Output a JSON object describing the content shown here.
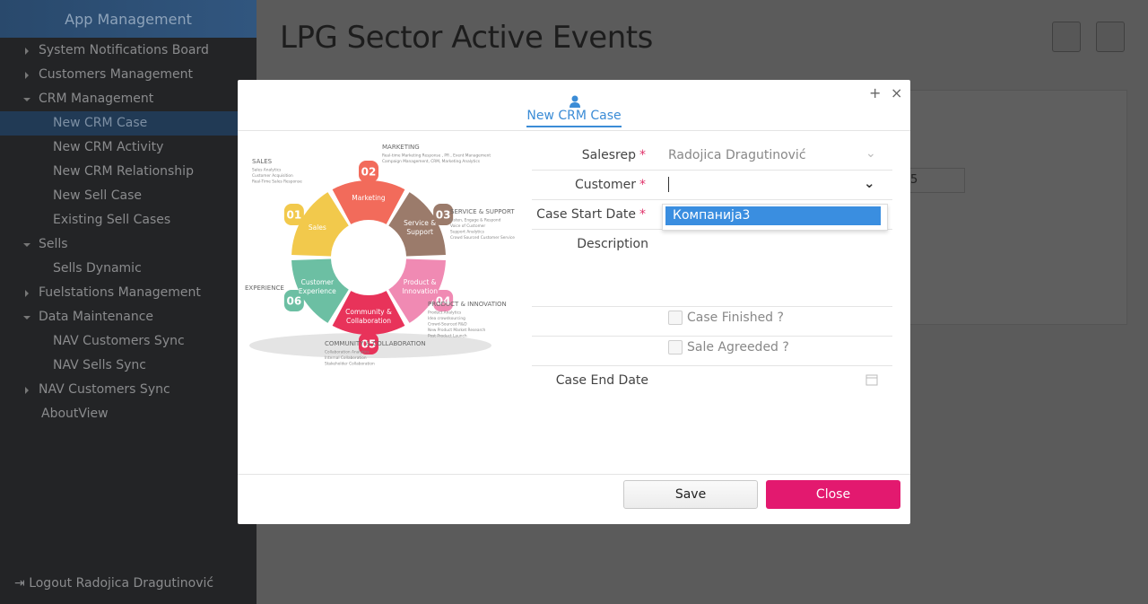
{
  "sidebar": {
    "title": "App Management",
    "items": [
      "System Notifications Board",
      "Customers Management",
      "CRM Management",
      "New CRM Case",
      "New CRM Activity",
      "New CRM Relationship",
      "New Sell Case",
      "Existing Sell Cases",
      "Sells",
      "Sells Dynamic",
      "Fuelstations Management",
      "Data Maintenance",
      "NAV Customers Sync",
      "NAV Sells Sync",
      "NAV Customers Sync",
      "AboutView"
    ],
    "logout": "Logout Radojica Dragutinović"
  },
  "page": {
    "title": "LPG Sector Active Events",
    "field_value": "5"
  },
  "dialog": {
    "tab": "New CRM Case",
    "form": {
      "salesrep_label": "Salesrep",
      "salesrep_value": "Radojica Dragutinović",
      "customer_label": "Customer",
      "start_label": "Case Start Date",
      "description_label": "Description",
      "finished_label": "Case Finished ?",
      "agreed_label": "Sale Agreeded ?",
      "end_label": "Case End Date",
      "required": "*"
    },
    "dropdown_option": "Компанија3",
    "buttons": {
      "save": "Save",
      "close": "Close"
    },
    "image": {
      "segments": [
        {
          "number": "02",
          "lines": [
            "Marketing"
          ]
        },
        {
          "number": "03",
          "lines": [
            "Service &",
            "Support"
          ]
        },
        {
          "number": "04",
          "lines": [
            "Product &",
            "Innovation"
          ]
        },
        {
          "number": "05",
          "lines": [
            "Community &",
            "Collaboration"
          ]
        },
        {
          "number": "06",
          "lines": [
            "Customer",
            "Experience"
          ]
        },
        {
          "number": "01",
          "lines": [
            "Sales"
          ]
        }
      ],
      "captions": [
        {
          "title": "MARKETING",
          "lines": [
            "Real-time Marketing Response , PR , Event Management",
            "Campaign Management, CRM, Marketing Analytics"
          ]
        },
        {
          "title": "SALES",
          "lines": [
            "Sales Analytics",
            "Customer Acquisition",
            "Real-Time Sales Response"
          ]
        },
        {
          "title": "SERVICE &  SUPPORT",
          "lines": [
            "Listen, Engage & Respond",
            "Voice of Customer",
            "Support Analytics",
            "Crowd Sourced Customer Service"
          ]
        },
        {
          "title": "PRODUCT & INNOVATION",
          "lines": [
            "Product Analytics",
            "Idea crowdsourcing",
            "Crowd-Sourced R&D",
            "New Product Market Research",
            "Post Product Launch"
          ]
        },
        {
          "title": "COMMUNITY &  COLLABORATION",
          "lines": [
            "Collaboration Analytics",
            "Internal Collaboration",
            "Stakeholder Collaboration"
          ]
        },
        {
          "title": "EXPERIENCE",
          "lines": []
        }
      ]
    }
  }
}
